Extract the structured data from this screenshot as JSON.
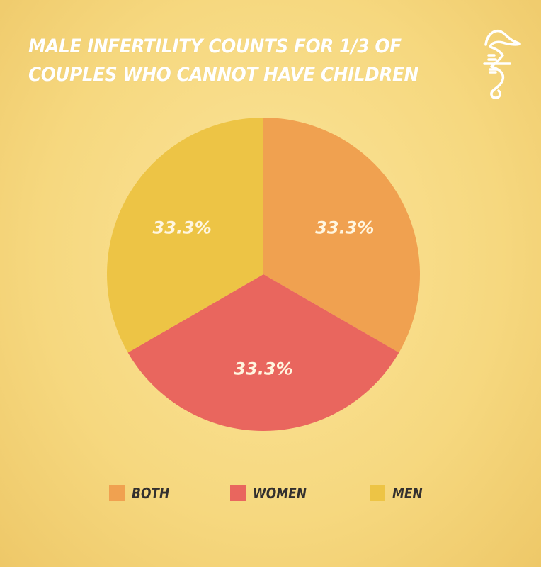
{
  "header": {
    "title_lines": [
      "MALE INFERTILITY COUNTS FOR 1/3 OF",
      "COUPLES WHO CANNOT HAVE CHILDREN"
    ],
    "logo_icon": "seahorse-logo-icon"
  },
  "chart_data": {
    "type": "pie",
    "title": "MALE INFERTILITY COUNTS FOR 1/3 OF COUPLES WHO CANNOT HAVE CHILDREN",
    "legend_position": "bottom",
    "start_angle": "top, clockwise",
    "slices": [
      {
        "name": "BOTH",
        "value": 33.3,
        "label": "33.3%",
        "color": "#f0a150"
      },
      {
        "name": "WOMEN",
        "value": 33.3,
        "label": "33.3%",
        "color": "#e9665e"
      },
      {
        "name": "MEN",
        "value": 33.3,
        "label": "33.3%",
        "color": "#edc445"
      }
    ]
  },
  "colors": {
    "background": "#f6d87f",
    "title": "#ffffff",
    "legend_text": "#33302f",
    "slice_label": "#fff6e0"
  }
}
